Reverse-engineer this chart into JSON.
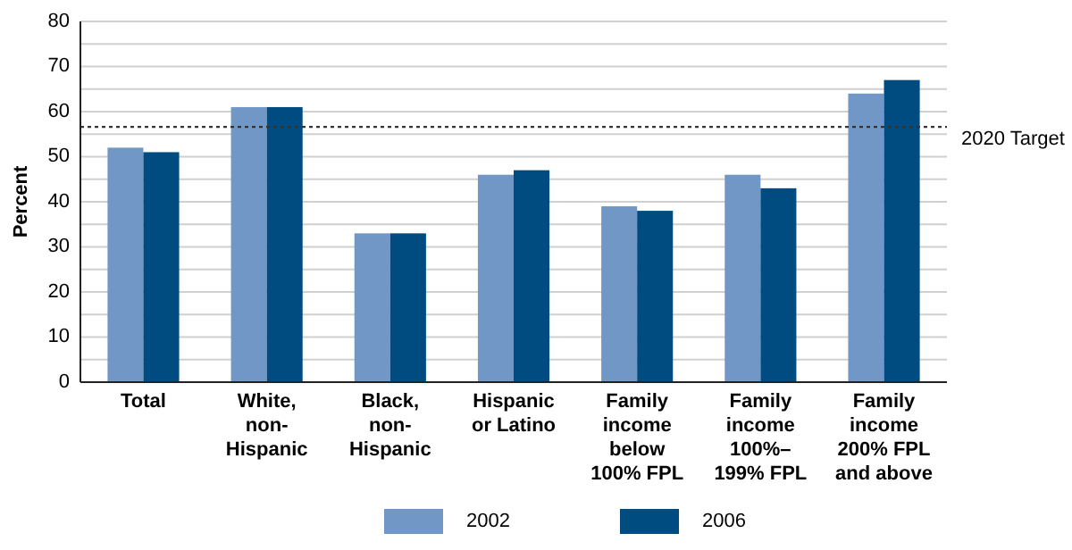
{
  "chart_data": {
    "type": "bar",
    "ylabel": "Percent",
    "categories": [
      "Total",
      "White, non-Hispanic",
      "Black, non-Hispanic",
      "Hispanic or Latino",
      "Family income below 100% FPL",
      "Family income 100%–199% FPL",
      "Family income 200% FPL and above"
    ],
    "series": [
      {
        "name": "2002",
        "color": "#7097c6",
        "values": [
          52,
          61,
          33,
          46,
          39,
          46,
          64
        ]
      },
      {
        "name": "2006",
        "color": "#004b80",
        "values": [
          51,
          61,
          33,
          47,
          38,
          43,
          67
        ]
      }
    ],
    "ylim": [
      0,
      80
    ],
    "yticks": [
      0,
      {
        "value": 5,
        "label": null
      },
      10,
      {
        "value": 15,
        "label": null
      },
      20,
      {
        "value": 25,
        "label": null
      },
      30,
      {
        "value": 35,
        "label": null
      },
      40,
      {
        "value": 45,
        "label": null
      },
      50,
      {
        "value": 55,
        "label": null
      },
      60,
      {
        "value": 65,
        "label": null
      },
      70,
      {
        "value": 75,
        "label": null
      },
      80
    ],
    "grid": "y",
    "ref_lines": [
      {
        "axis": "y",
        "value": 56.6,
        "label": "2020 Target",
        "line_style": "dotted"
      }
    ],
    "legend": "bottom"
  }
}
